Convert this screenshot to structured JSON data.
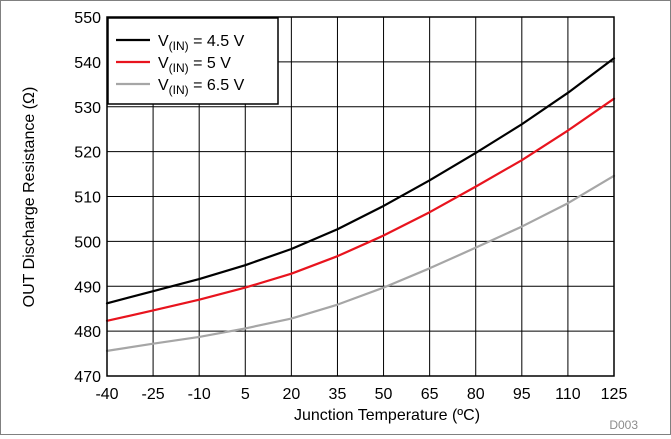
{
  "chart_data": {
    "type": "line",
    "title": "",
    "xlabel": "Junction Temperature (ºC)",
    "ylabel": "OUT Discharge Resistance (Ω)",
    "xlim": [
      -40,
      125
    ],
    "ylim": [
      470,
      550
    ],
    "xticks": [
      -40,
      -25,
      -10,
      5,
      20,
      35,
      50,
      65,
      80,
      95,
      110,
      125
    ],
    "yticks": [
      470,
      480,
      490,
      500,
      510,
      520,
      530,
      540,
      550
    ],
    "grid": true,
    "legend_position": "top-left",
    "series": [
      {
        "name": "V(IN) = 4.5 V",
        "name_main": "V",
        "name_sub": "(IN)",
        "name_rest": " = 4.5 V",
        "color": "#000000",
        "x": [
          -40,
          -25,
          -10,
          5,
          20,
          35,
          50,
          65,
          80,
          95,
          110,
          125
        ],
        "y": [
          486.2,
          488.9,
          491.6,
          494.7,
          498.3,
          502.7,
          507.9,
          513.6,
          519.7,
          526.1,
          533.1,
          540.8
        ]
      },
      {
        "name": "V(IN) = 5 V",
        "name_main": "V",
        "name_sub": "(IN)",
        "name_rest": " = 5 V",
        "color": "#e8141e",
        "x": [
          -40,
          -25,
          -10,
          5,
          20,
          35,
          50,
          65,
          80,
          95,
          110,
          125
        ],
        "y": [
          482.3,
          484.6,
          487.0,
          489.7,
          492.8,
          496.7,
          501.3,
          506.5,
          512.2,
          518.1,
          524.7,
          531.8
        ]
      },
      {
        "name": "V(IN) = 6.5 V",
        "name_main": "V",
        "name_sub": "(IN)",
        "name_rest": " = 6.5 V",
        "color": "#a6a6a6",
        "x": [
          -40,
          -25,
          -10,
          5,
          20,
          35,
          50,
          65,
          80,
          95,
          110,
          125
        ],
        "y": [
          475.6,
          477.2,
          478.7,
          480.6,
          482.8,
          485.9,
          489.7,
          494.0,
          498.6,
          503.3,
          508.5,
          514.6
        ]
      }
    ],
    "figure_id": "D003"
  }
}
